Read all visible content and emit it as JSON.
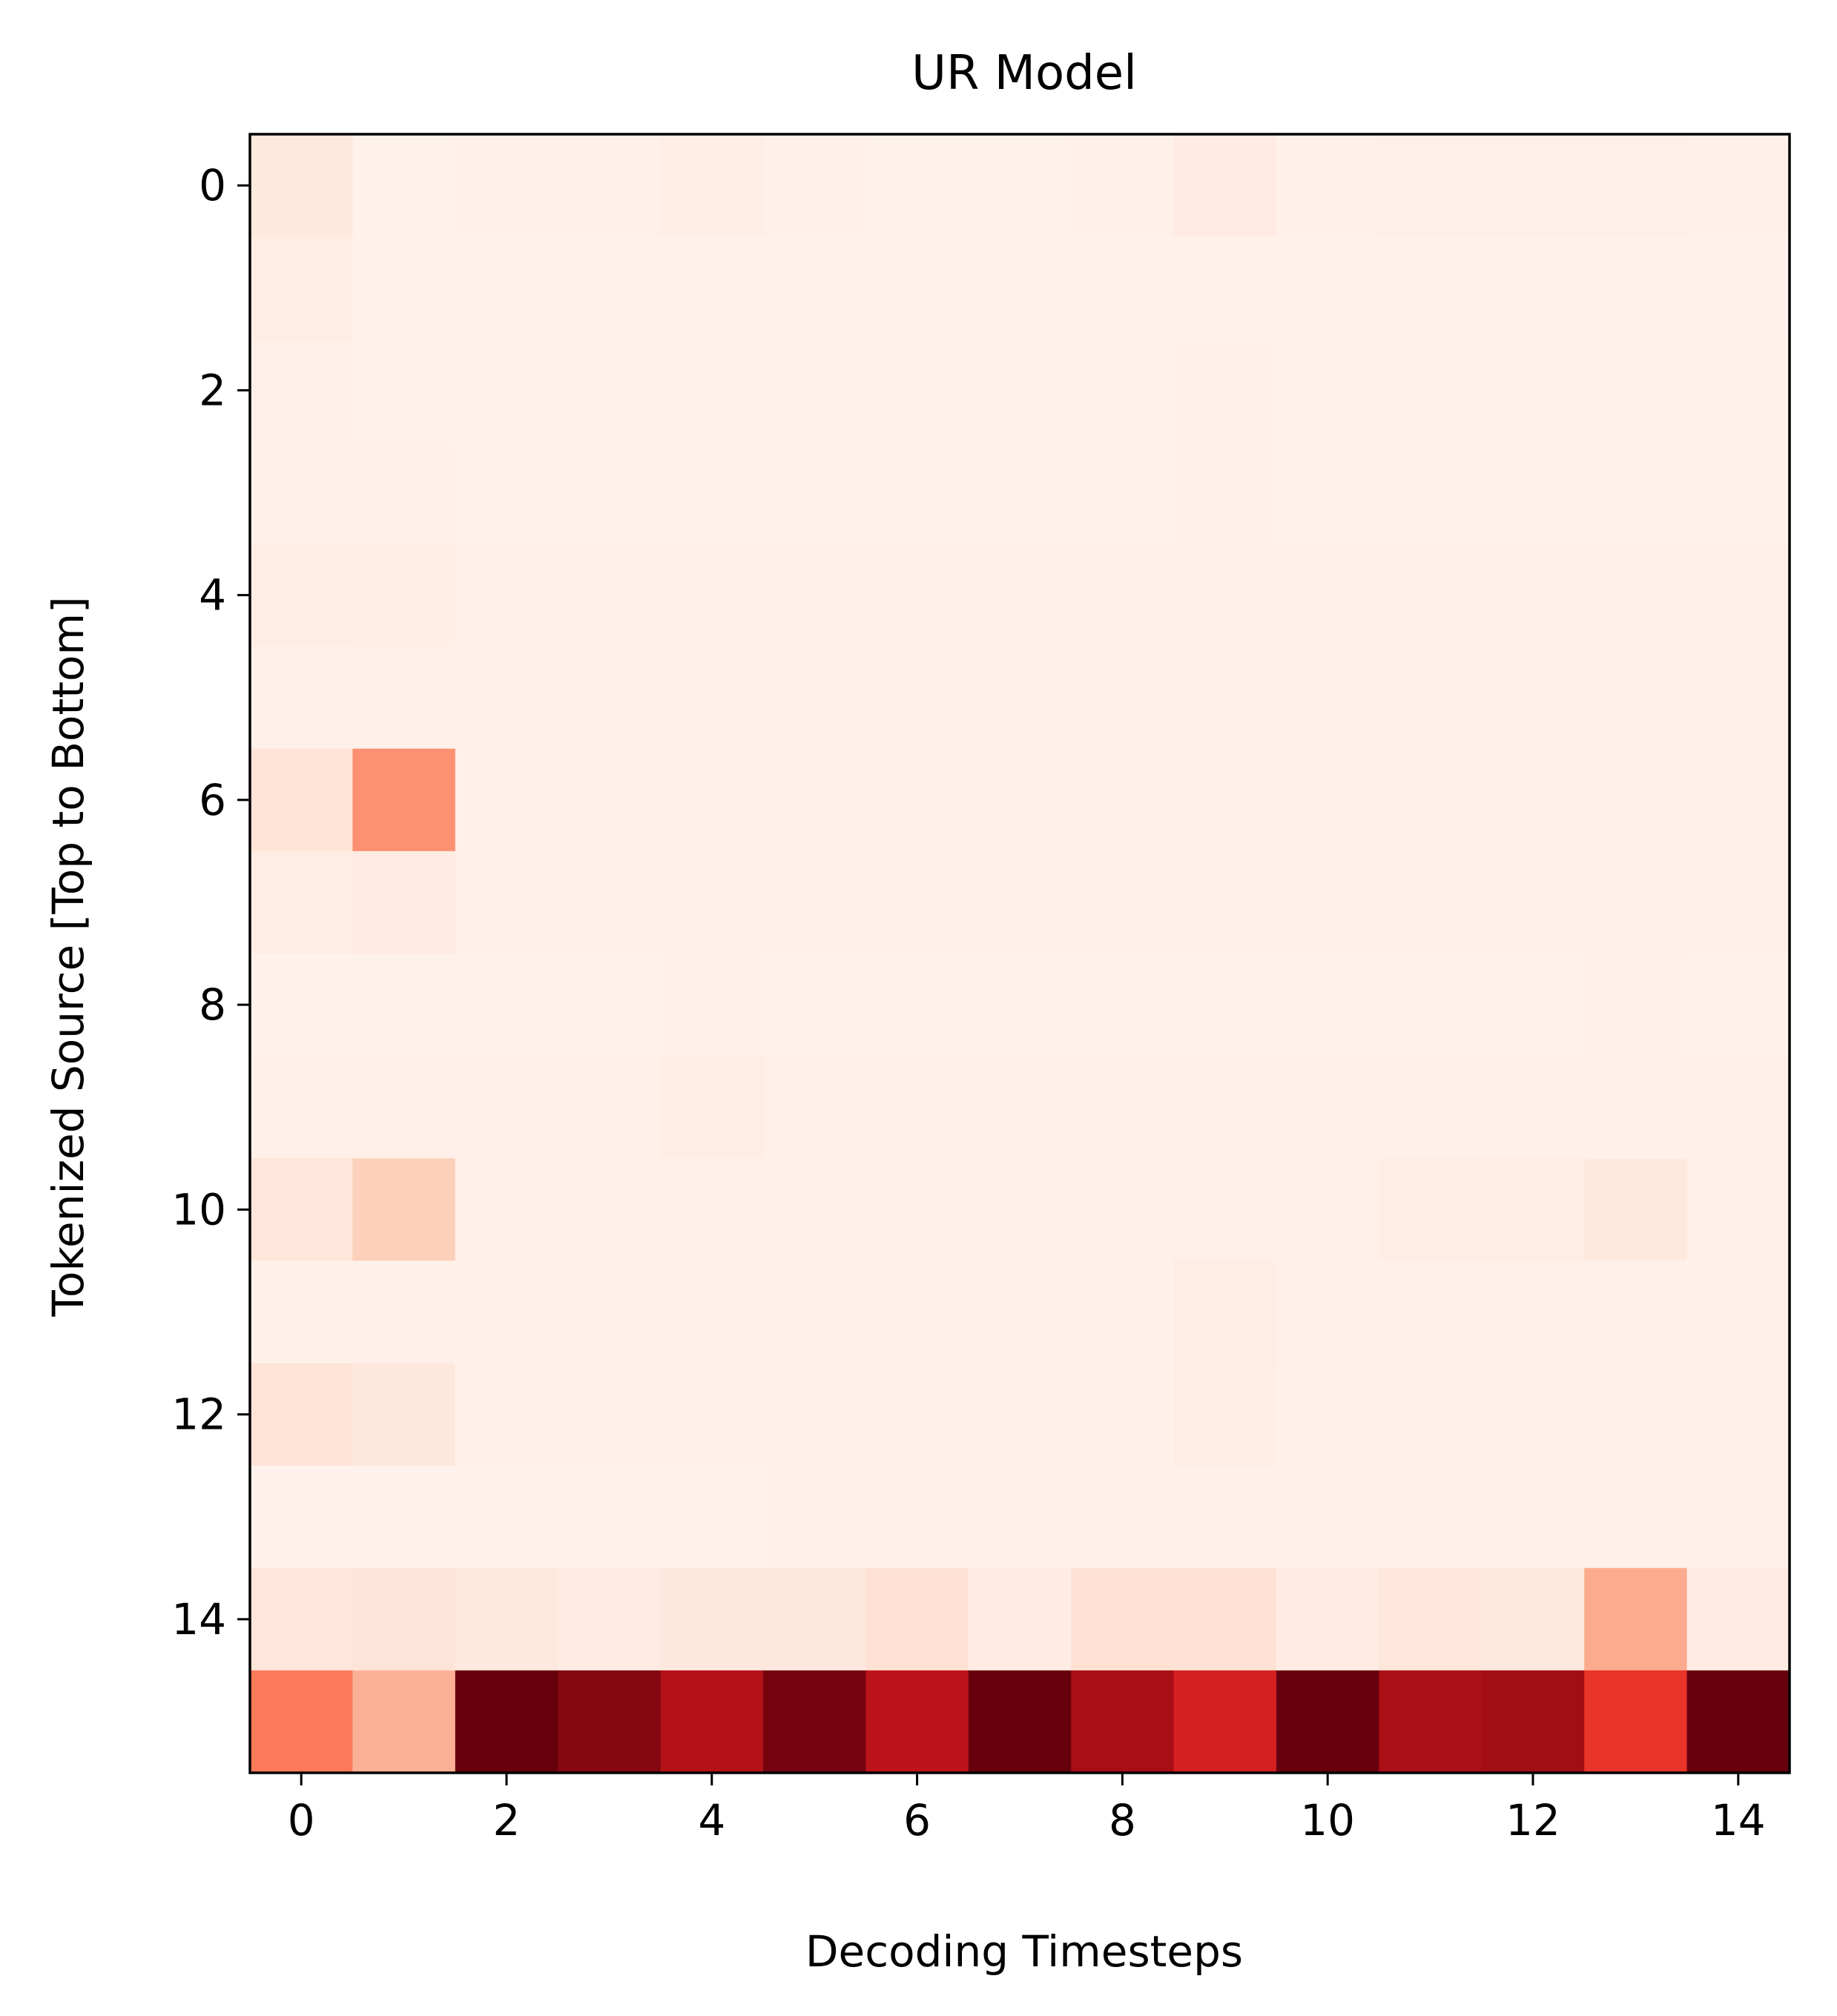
{
  "chart_data": {
    "type": "heatmap",
    "title": "UR Model",
    "xlabel": "Decoding Timesteps",
    "ylabel": "Tokenized Source [Top to Bottom]",
    "colormap": "Reds",
    "rows": 16,
    "cols": 15,
    "xticks": [
      0,
      2,
      4,
      6,
      8,
      10,
      12,
      14
    ],
    "yticks": [
      0,
      2,
      4,
      6,
      8,
      10,
      12,
      14
    ],
    "grid": false,
    "values": [
      [
        0.07,
        0.015,
        0.03,
        0.03,
        0.04,
        0.025,
        0.02,
        0.02,
        0.025,
        0.06,
        0.025,
        0.035,
        0.035,
        0.035,
        0.025
      ],
      [
        0.05,
        0.02,
        0.02,
        0.02,
        0.015,
        0.015,
        0.015,
        0.015,
        0.015,
        0.02,
        0.015,
        0.015,
        0.015,
        0.015,
        0.015
      ],
      [
        0.035,
        0.02,
        0.02,
        0.02,
        0.02,
        0.02,
        0.02,
        0.02,
        0.02,
        0.025,
        0.02,
        0.02,
        0.02,
        0.02,
        0.02
      ],
      [
        0.025,
        0.03,
        0.02,
        0.02,
        0.02,
        0.02,
        0.02,
        0.02,
        0.02,
        0.03,
        0.02,
        0.02,
        0.02,
        0.02,
        0.02
      ],
      [
        0.05,
        0.04,
        0.025,
        0.025,
        0.025,
        0.025,
        0.025,
        0.025,
        0.025,
        0.025,
        0.025,
        0.025,
        0.025,
        0.025,
        0.025
      ],
      [
        0.03,
        0.03,
        0.025,
        0.03,
        0.03,
        0.03,
        0.025,
        0.025,
        0.025,
        0.03,
        0.03,
        0.03,
        0.03,
        0.03,
        0.025
      ],
      [
        0.11,
        0.38,
        0.025,
        0.025,
        0.025,
        0.025,
        0.025,
        0.025,
        0.025,
        0.025,
        0.025,
        0.025,
        0.025,
        0.025,
        0.025
      ],
      [
        0.045,
        0.06,
        0.025,
        0.025,
        0.03,
        0.025,
        0.025,
        0.025,
        0.03,
        0.03,
        0.025,
        0.03,
        0.025,
        0.03,
        0.025
      ],
      [
        0.02,
        0.02,
        0.02,
        0.02,
        0.025,
        0.02,
        0.02,
        0.02,
        0.02,
        0.02,
        0.02,
        0.02,
        0.02,
        0.025,
        0.02
      ],
      [
        0.03,
        0.035,
        0.03,
        0.03,
        0.05,
        0.035,
        0.03,
        0.03,
        0.03,
        0.03,
        0.03,
        0.03,
        0.03,
        0.03,
        0.03
      ],
      [
        0.09,
        0.18,
        0.03,
        0.03,
        0.03,
        0.025,
        0.03,
        0.03,
        0.03,
        0.035,
        0.035,
        0.045,
        0.055,
        0.07,
        0.03
      ],
      [
        0.025,
        0.025,
        0.025,
        0.03,
        0.03,
        0.03,
        0.03,
        0.03,
        0.03,
        0.045,
        0.03,
        0.03,
        0.03,
        0.03,
        0.025
      ],
      [
        0.11,
        0.08,
        0.025,
        0.03,
        0.03,
        0.025,
        0.03,
        0.03,
        0.025,
        0.05,
        0.025,
        0.025,
        0.025,
        0.025,
        0.025
      ],
      [
        0.015,
        0.015,
        0.015,
        0.02,
        0.02,
        0.025,
        0.03,
        0.03,
        0.03,
        0.025,
        0.025,
        0.025,
        0.025,
        0.025,
        0.025
      ],
      [
        0.09,
        0.1,
        0.07,
        0.06,
        0.08,
        0.08,
        0.12,
        0.06,
        0.12,
        0.12,
        0.06,
        0.09,
        0.07,
        0.3,
        0.06
      ],
      [
        0.45,
        0.28,
        1.0,
        0.94,
        0.83,
        0.97,
        0.8,
        1.0,
        0.87,
        0.72,
        1.0,
        0.86,
        0.88,
        0.65,
        1.0
      ]
    ]
  }
}
